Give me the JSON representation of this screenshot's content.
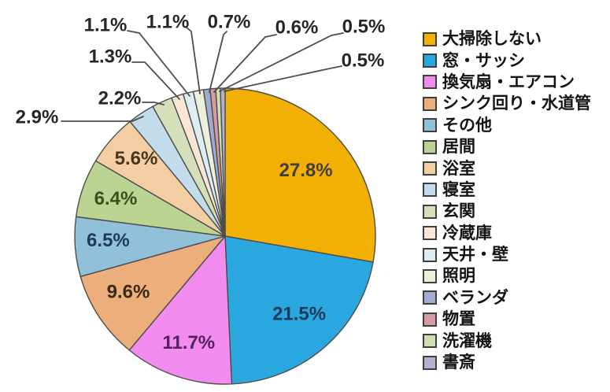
{
  "figure": {
    "background_color": "#FFFFFF",
    "description": "Pie chart of house big-cleaning survey results with right-side legend"
  },
  "chart_data": {
    "type": "pie",
    "title": "",
    "unit": "%",
    "start_angle": "12-oclock",
    "direction": "clockwise",
    "legend_position": "right",
    "grid": false,
    "slice_border_color": "#4D4D4D",
    "leader_line_color": "#4D4D4D",
    "outside_label_color": "#262626",
    "slices": [
      {
        "label": "大掃除しない",
        "value": 27.8,
        "display": "27.8%",
        "color": "#F2B005",
        "label_color": "#3F3F3F",
        "label_pos": "inside"
      },
      {
        "label": "窓・サッシ",
        "value": 21.5,
        "display": "21.5%",
        "color": "#2BA7E0",
        "label_color": "#1B3B5E",
        "label_pos": "inside"
      },
      {
        "label": "換気扇・エアコン",
        "value": 11.7,
        "display": "11.7%",
        "color": "#F28CEE",
        "label_color": "#55225F",
        "label_pos": "inside"
      },
      {
        "label": "シンク回り・水道管",
        "value": 9.6,
        "display": "9.6%",
        "color": "#ECAF7B",
        "label_color": "#3A2A14",
        "label_pos": "inside"
      },
      {
        "label": "その他",
        "value": 6.5,
        "display": "6.5%",
        "color": "#90C1D8",
        "label_color": "#1E3A5F",
        "label_pos": "inside"
      },
      {
        "label": "居間",
        "value": 6.4,
        "display": "6.4%",
        "color": "#BCD492",
        "label_color": "#37521D",
        "label_pos": "inside"
      },
      {
        "label": "浴室",
        "value": 5.6,
        "display": "5.6%",
        "color": "#F3CEA3",
        "label_color": "#4A3520",
        "label_pos": "inside"
      },
      {
        "label": "寝室",
        "value": 2.9,
        "display": "2.9%",
        "color": "#C2DCEC",
        "label_color": "#262626",
        "label_pos": "outside"
      },
      {
        "label": "玄関",
        "value": 2.2,
        "display": "2.2%",
        "color": "#D5E0BA",
        "label_color": "#262626",
        "label_pos": "outside"
      },
      {
        "label": "冷蔵庫",
        "value": 1.3,
        "display": "1.3%",
        "color": "#FAE6D6",
        "label_color": "#262626",
        "label_pos": "outside"
      },
      {
        "label": "天井・壁",
        "value": 1.1,
        "display": "1.1%",
        "color": "#DCEDF4",
        "label_color": "#262626",
        "label_pos": "outside"
      },
      {
        "label": "照明",
        "value": 1.1,
        "display": "1.1%",
        "color": "#EAF0DB",
        "label_color": "#262626",
        "label_pos": "outside"
      },
      {
        "label": "ベランダ",
        "value": 0.7,
        "display": "0.7%",
        "color": "#A0ABD2",
        "label_color": "#262626",
        "label_pos": "outside"
      },
      {
        "label": "物置",
        "value": 0.6,
        "display": "0.6%",
        "color": "#D59AA2",
        "label_color": "#262626",
        "label_pos": "outside"
      },
      {
        "label": "洗濯機",
        "value": 0.5,
        "display": "0.5%",
        "color": "#CFE0B0",
        "label_color": "#262626",
        "label_pos": "outside"
      },
      {
        "label": "書斎",
        "value": 0.5,
        "display": "0.5%",
        "color": "#B1B2CE",
        "label_color": "#262626",
        "label_pos": "outside"
      }
    ]
  }
}
